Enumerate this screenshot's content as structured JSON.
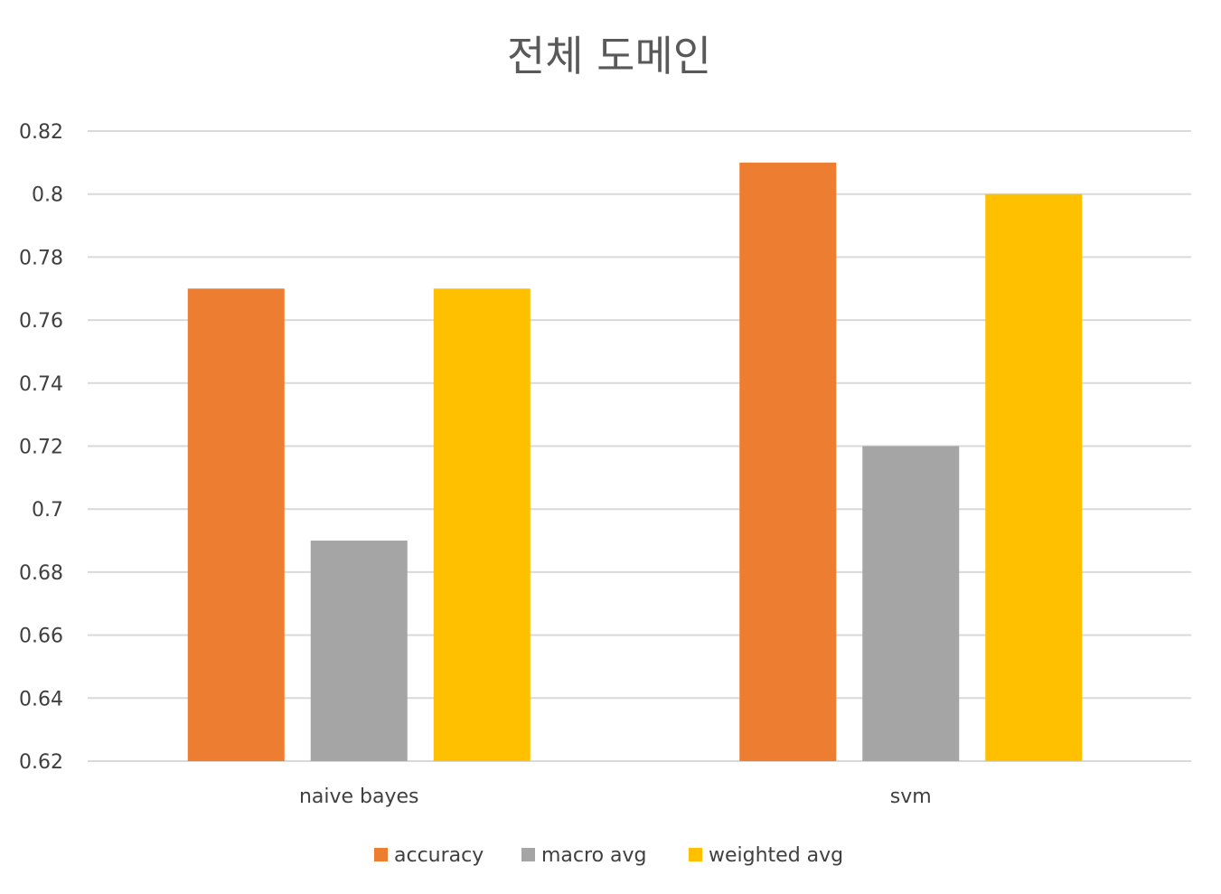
{
  "chart_data": {
    "type": "bar",
    "title": "전체 도메인",
    "xlabel": "",
    "ylabel": "",
    "categories": [
      "naive bayes",
      "svm"
    ],
    "series": [
      {
        "name": "accuracy",
        "values": [
          0.77,
          0.81
        ],
        "color": "#ED7D31"
      },
      {
        "name": "macro avg",
        "values": [
          0.69,
          0.72
        ],
        "color": "#A5A5A5"
      },
      {
        "name": "weighted avg",
        "values": [
          0.77,
          0.8
        ],
        "color": "#FFC000"
      }
    ],
    "ylim": [
      0.62,
      0.82
    ],
    "yticks": [
      "0.62",
      "0.64",
      "0.66",
      "0.68",
      "0.7",
      "0.72",
      "0.74",
      "0.76",
      "0.78",
      "0.8",
      "0.82"
    ],
    "grid": true,
    "legend_position": "bottom"
  }
}
